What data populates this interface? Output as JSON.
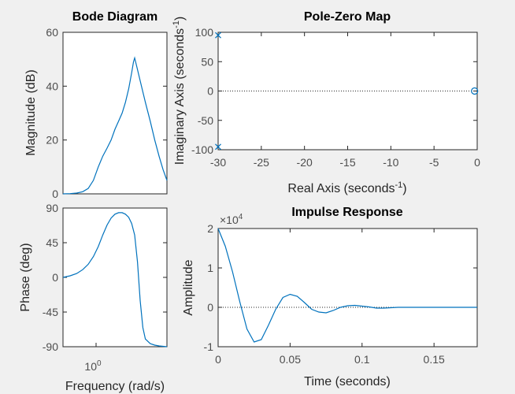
{
  "chart_data": [
    {
      "type": "line",
      "subplot": "bode-magnitude",
      "title": "Bode Diagram",
      "ylabel": "Magnitude (dB)",
      "ylim": [
        0,
        60
      ],
      "yticks": [
        0,
        20,
        40,
        60
      ],
      "x_scale": "log",
      "series": [
        {
          "x": [
            0.5,
            0.55,
            0.6,
            0.65,
            0.7,
            0.75,
            0.8,
            0.85,
            0.9,
            0.95,
            1.0,
            1.05,
            1.1,
            1.15,
            1.2,
            1.25,
            1.28,
            1.3,
            1.34,
            1.4,
            1.5,
            1.6,
            1.7,
            1.8,
            1.9,
            2.0
          ],
          "y": [
            0,
            0.1,
            0.3,
            0.8,
            2,
            5,
            10,
            14,
            17,
            20,
            24,
            27,
            30,
            34,
            39,
            45,
            49,
            50.5,
            47,
            42,
            34,
            27,
            20,
            14,
            9,
            5
          ]
        }
      ]
    },
    {
      "type": "line",
      "subplot": "bode-phase",
      "title": "",
      "xlabel": "Frequency  (rad/s)",
      "ylabel": "Phase (deg)",
      "ylim": [
        -90,
        90
      ],
      "yticks": [
        90,
        45,
        0,
        -45,
        -90
      ],
      "x_scale": "log",
      "x_tick_label": "10",
      "x_tick_exponent": "0",
      "series": [
        {
          "x": [
            0.5,
            0.55,
            0.6,
            0.65,
            0.7,
            0.75,
            0.8,
            0.85,
            0.9,
            0.95,
            1.0,
            1.05,
            1.1,
            1.15,
            1.2,
            1.25,
            1.3,
            1.35,
            1.4,
            1.45,
            1.5,
            1.6,
            1.7,
            1.8,
            2.0
          ],
          "y": [
            0,
            2,
            5,
            10,
            17,
            27,
            40,
            55,
            68,
            77,
            82,
            84,
            84,
            82,
            78,
            70,
            55,
            20,
            -30,
            -65,
            -80,
            -86,
            -88,
            -89,
            -90
          ]
        }
      ]
    },
    {
      "type": "scatter",
      "subplot": "pole-zero-map",
      "title": "Pole-Zero Map",
      "xlabel": "Real Axis (seconds",
      "xlabel_sup": "-1",
      "xlabel_close": ")",
      "ylabel": "Imaginary Axis (seconds",
      "ylabel_sup": "-1",
      "ylabel_close": ")",
      "xlim": [
        -30,
        0
      ],
      "ylim": [
        -100,
        100
      ],
      "xticks": [
        -30,
        -25,
        -20,
        -15,
        -10,
        -5,
        0
      ],
      "yticks": [
        100,
        50,
        0,
        -50,
        -100
      ],
      "poles": [
        {
          "re": -30,
          "im": 95
        },
        {
          "re": -30,
          "im": -95
        }
      ],
      "zeros": [
        {
          "re": -0.3,
          "im": 0
        }
      ]
    },
    {
      "type": "line",
      "subplot": "impulse-response",
      "title": "Impulse Response",
      "xlabel": "Time (seconds)",
      "ylabel": "Amplitude",
      "xlim": [
        0,
        0.18
      ],
      "ylim": [
        -1,
        2
      ],
      "xticks": [
        0,
        0.05,
        0.1,
        0.15
      ],
      "yticks": [
        2,
        1,
        0,
        -1
      ],
      "y_multiplier_base": "×10",
      "y_multiplier_exp": "4",
      "series": [
        {
          "x": [
            0,
            0.005,
            0.01,
            0.015,
            0.02,
            0.025,
            0.03,
            0.035,
            0.04,
            0.045,
            0.05,
            0.055,
            0.06,
            0.065,
            0.07,
            0.075,
            0.08,
            0.085,
            0.09,
            0.095,
            0.1,
            0.105,
            0.11,
            0.115,
            0.12,
            0.125,
            0.13,
            0.14,
            0.15,
            0.16,
            0.17,
            0.18
          ],
          "y": [
            2,
            1.55,
            0.9,
            0.15,
            -0.55,
            -0.88,
            -0.82,
            -0.45,
            -0.05,
            0.25,
            0.33,
            0.28,
            0.12,
            -0.05,
            -0.12,
            -0.14,
            -0.08,
            0.0,
            0.04,
            0.05,
            0.03,
            0.01,
            -0.02,
            -0.02,
            -0.01,
            0.0,
            0.0,
            0.0,
            0.0,
            0.0,
            0.0,
            0.0
          ]
        }
      ]
    }
  ]
}
